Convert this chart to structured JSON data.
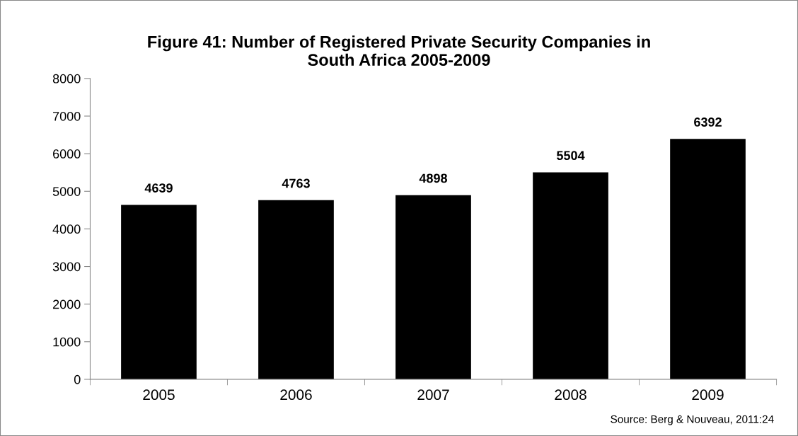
{
  "chart_data": {
    "type": "bar",
    "title": "Figure 41: Number of Registered Private Security Companies in\nSouth Africa 2005-2009",
    "categories": [
      "2005",
      "2006",
      "2007",
      "2008",
      "2009"
    ],
    "values": [
      4639,
      4763,
      4898,
      5504,
      6392
    ],
    "color": "#000000",
    "ylim": [
      0,
      8000
    ],
    "yticks": [
      0,
      1000,
      2000,
      3000,
      4000,
      5000,
      6000,
      7000,
      8000
    ],
    "data_labels": true,
    "grid": false,
    "legend": false,
    "annotations": [
      "Source: Berg & Nouveau, 2011:24"
    ]
  }
}
